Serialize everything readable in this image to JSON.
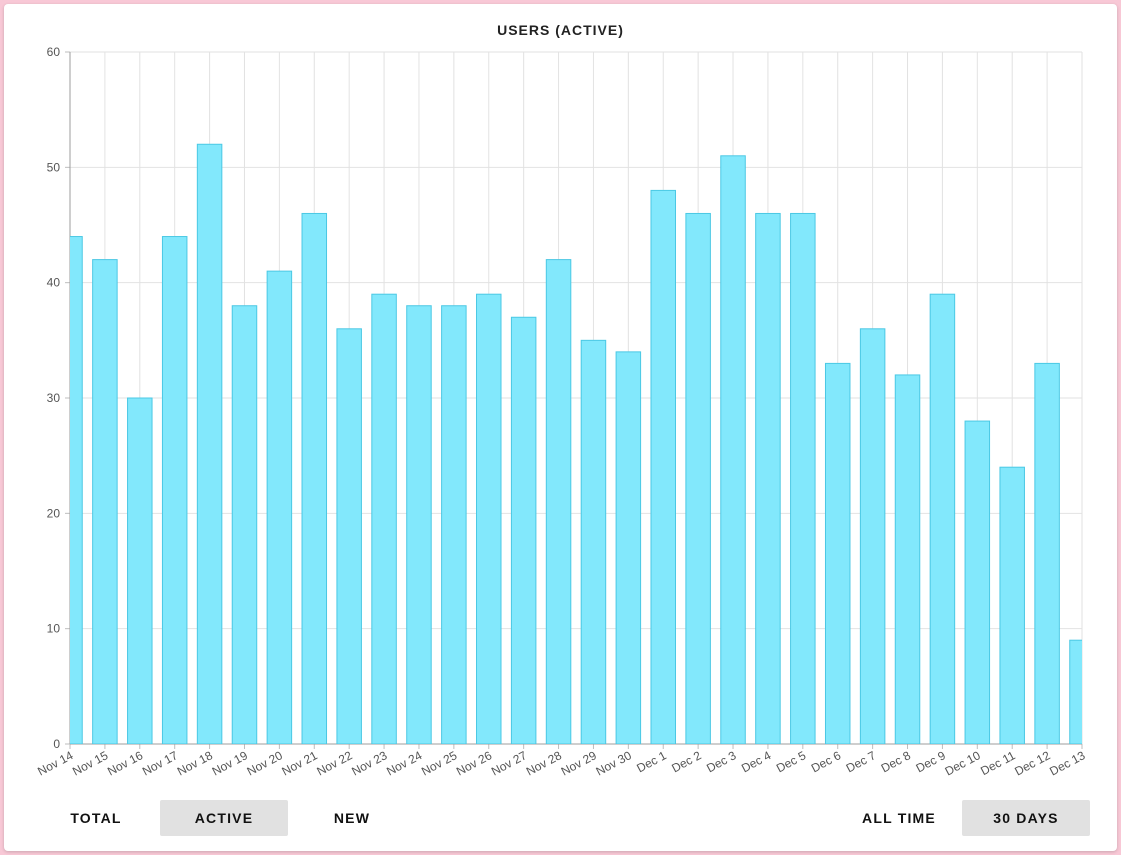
{
  "title": "USERS (ACTIVE)",
  "chart_data": {
    "type": "bar",
    "title": "USERS (ACTIVE)",
    "xlabel": "",
    "ylabel": "",
    "ylim": [
      0,
      60
    ],
    "yticks": [
      0,
      10,
      20,
      30,
      40,
      50,
      60
    ],
    "grid": true,
    "bar_color": "#82e8fc",
    "bar_border_color": "#4bc8e4",
    "categories": [
      "Nov 14",
      "Nov 15",
      "Nov 16",
      "Nov 17",
      "Nov 18",
      "Nov 19",
      "Nov 20",
      "Nov 21",
      "Nov 22",
      "Nov 23",
      "Nov 24",
      "Nov 25",
      "Nov 26",
      "Nov 27",
      "Nov 28",
      "Nov 29",
      "Nov 30",
      "Dec 1",
      "Dec 2",
      "Dec 3",
      "Dec 4",
      "Dec 5",
      "Dec 6",
      "Dec 7",
      "Dec 8",
      "Dec 9",
      "Dec 10",
      "Dec 11",
      "Dec 12",
      "Dec 13"
    ],
    "values": [
      44,
      42,
      30,
      44,
      52,
      38,
      41,
      46,
      36,
      39,
      38,
      38,
      39,
      37,
      42,
      35,
      34,
      48,
      46,
      51,
      46,
      46,
      33,
      36,
      32,
      39,
      28,
      24,
      33,
      9
    ]
  },
  "controls": {
    "metric_buttons": [
      {
        "label": "TOTAL",
        "selected": false
      },
      {
        "label": "ACTIVE",
        "selected": true
      },
      {
        "label": "NEW",
        "selected": false
      }
    ],
    "range_buttons": [
      {
        "label": "ALL TIME",
        "selected": false
      },
      {
        "label": "30 DAYS",
        "selected": true
      }
    ]
  }
}
